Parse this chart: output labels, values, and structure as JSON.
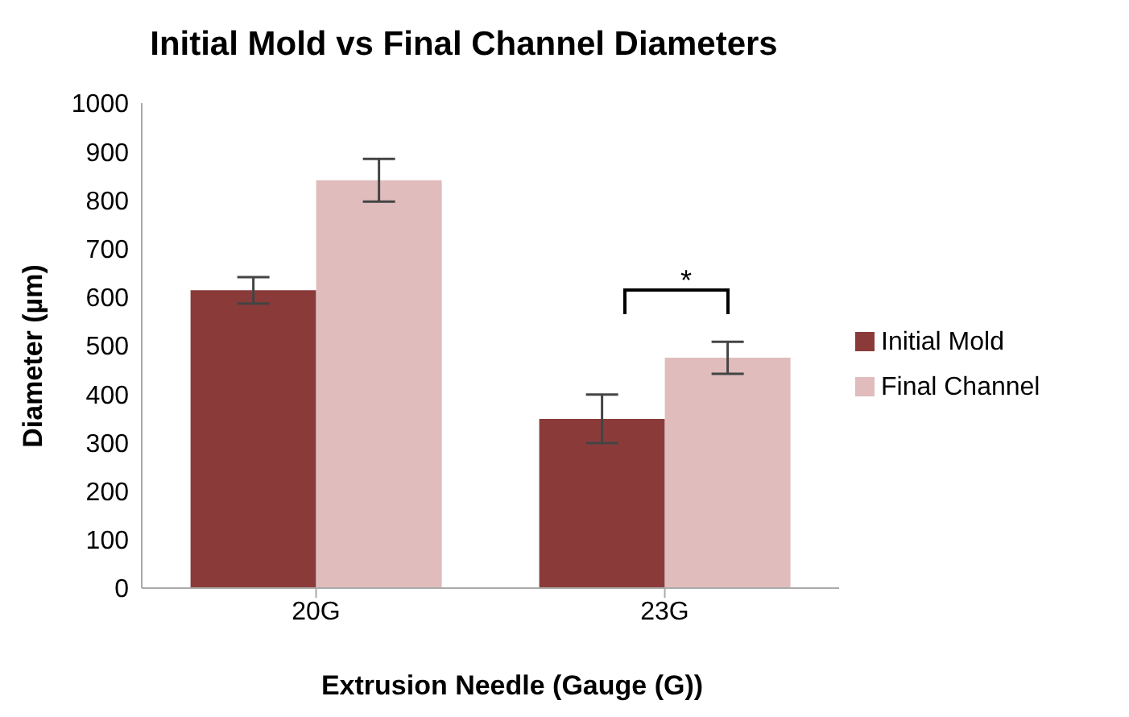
{
  "chart_data": {
    "type": "bar",
    "title": "Initial Mold vs Final Channel Diameters",
    "xlabel": "Extrusion Needle (Gauge (G))",
    "ylabel": "Diameter (µm)",
    "categories": [
      "20G",
      "23G"
    ],
    "series": [
      {
        "name": "Initial Mold",
        "color": "#8b3a3a",
        "values": [
          614,
          349
        ],
        "errors": [
          27,
          50
        ]
      },
      {
        "name": "Final Channel",
        "color": "#e0bcbc",
        "values": [
          841,
          475
        ],
        "errors": [
          44,
          33
        ]
      }
    ],
    "ylim": [
      0,
      1000
    ],
    "yticks": [
      0,
      100,
      200,
      300,
      400,
      500,
      600,
      700,
      800,
      900,
      1000
    ],
    "legend": "right",
    "annotations": [
      "*"
    ]
  }
}
